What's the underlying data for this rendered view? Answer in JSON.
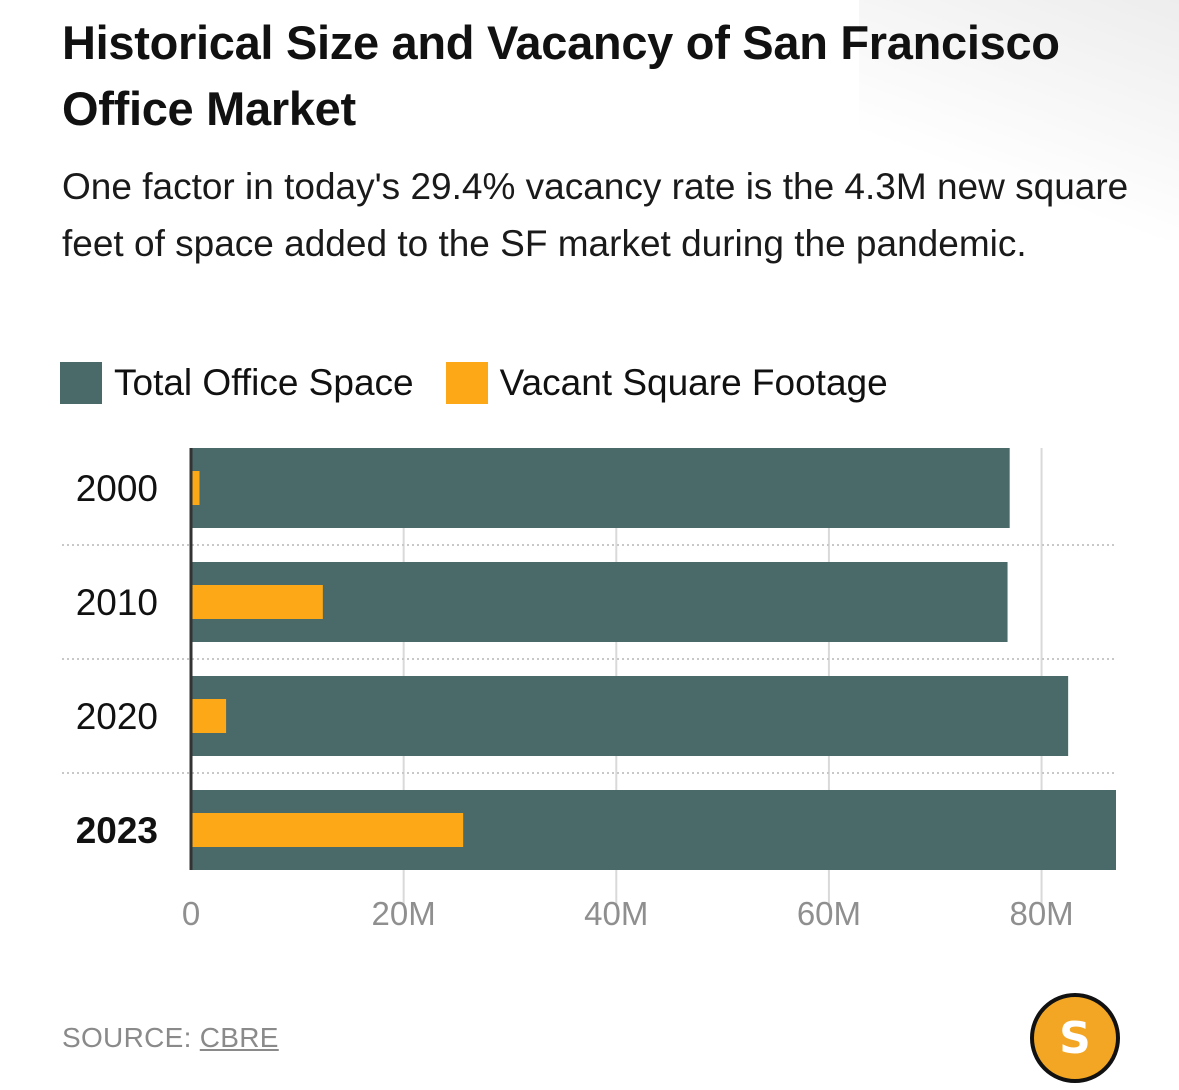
{
  "header": {
    "title": "Historical Size and Vacancy of San Francisco Office Market",
    "subtitle": "One factor in today's 29.4% vacancy rate is the 4.3M new square feet of space added to the SF market during the pandemic."
  },
  "legend": {
    "total_label": "Total Office Space",
    "vacant_label": "Vacant Square Footage"
  },
  "colors": {
    "total": "#4a6a6a",
    "vacant": "#fca817",
    "grid": "#d9d9d9",
    "axis_text": "#8f8f8f"
  },
  "chart_data": {
    "type": "bar",
    "orientation": "horizontal",
    "categories": [
      "2000",
      "2010",
      "2020",
      "2023"
    ],
    "highlight_category": "2023",
    "series": [
      {
        "name": "Total Office Space",
        "values": [
          77,
          76.8,
          82.5,
          87
        ]
      },
      {
        "name": "Vacant Square Footage",
        "values": [
          0.8,
          12.4,
          3.3,
          25.6
        ]
      }
    ],
    "xticks": [
      "0",
      "20M",
      "40M",
      "60M",
      "80M"
    ],
    "xtick_values": [
      0,
      20,
      40,
      60,
      80
    ],
    "xlim": [
      0,
      87
    ],
    "grid": true
  },
  "footer": {
    "source_prefix": "SOURCE: ",
    "source_name": "CBRE",
    "logo_letter": "S"
  }
}
